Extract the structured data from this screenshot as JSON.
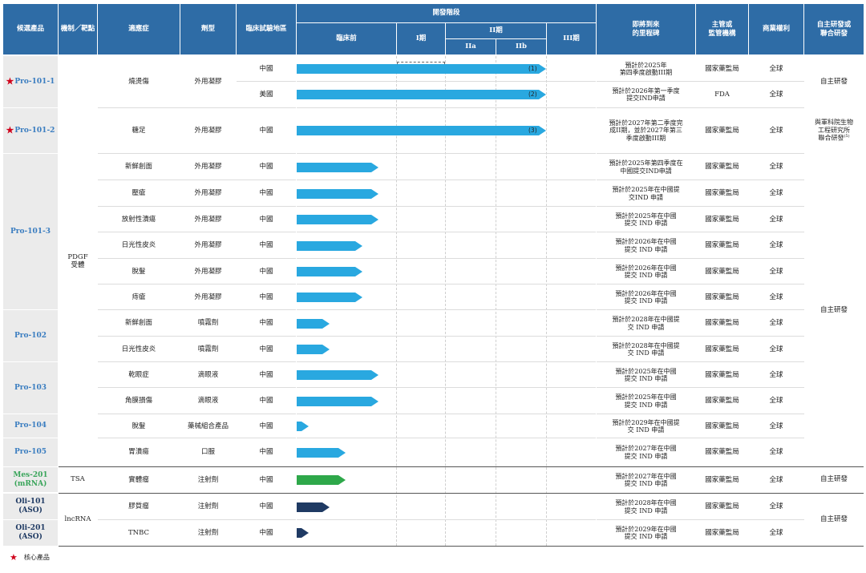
{
  "colors": {
    "header_bg": "#2e6ca6",
    "bar_blue": "#29a8e0",
    "bar_green": "#2ea84a",
    "bar_navy": "#1f3a63",
    "product_blue": "#3a7dc0",
    "product_green": "#3aa55b",
    "star_red": "#d0021b"
  },
  "headers": {
    "candidate": "候選產品",
    "mechanism": "機制／靶點",
    "indication": "適應症",
    "dosage_form": "劑型",
    "region": "臨床試驗地區",
    "stage": "開發階段",
    "preclinical": "臨床前",
    "phase1": "I期",
    "phase2": "II期",
    "phase2a": "IIa",
    "phase2b": "IIb",
    "phase3": "III期",
    "milestone_l1": "即將到來",
    "milestone_l2": "的里程碑",
    "authority_l1": "主管或",
    "authority_l2": "監管機構",
    "rights": "商業權利",
    "devmode_l1": "自主研發或",
    "devmode_l2": "聯合研發"
  },
  "products": [
    {
      "name": "Pro-101-1",
      "core": true
    },
    {
      "name": "Pro-101-2",
      "core": true
    },
    {
      "name": "Pro-101-3",
      "core": false
    },
    {
      "name": "Pro-102",
      "core": false
    },
    {
      "name": "Pro-103",
      "core": false
    },
    {
      "name": "Pro-104",
      "core": false
    },
    {
      "name": "Pro-105",
      "core": false
    },
    {
      "name_l1": "Mes-201",
      "name_l2": "(mRNA)"
    },
    {
      "name_l1": "Oli-101",
      "name_l2": "(ASO)"
    },
    {
      "name_l1": "Oli-201",
      "name_l2": "(ASO)"
    }
  ],
  "mechanisms": {
    "pdgf_l1": "PDGF",
    "pdgf_l2": "受體",
    "tsa": "TSA",
    "lncrna": "lncRNA"
  },
  "rows": [
    {
      "indication": "燒燙傷",
      "form": "外用凝膠",
      "region": "中國",
      "milestone": "預計於2025年\n第四季度啟動III期",
      "authority": "國家藥監局",
      "rights": "全球",
      "bar_pct": 100,
      "bar_label": "(1)",
      "color": "blue"
    },
    {
      "indication": "",
      "form": "",
      "region": "美國",
      "milestone": "預計於2026年第一季度\n提交IND申請",
      "authority": "FDA",
      "rights": "全球",
      "bar_pct": 100,
      "bar_label": "(2)",
      "color": "blue"
    },
    {
      "indication": "糖足",
      "form": "外用凝膠",
      "region": "中國",
      "milestone": "預計於2027年第二季度完\n成II期，並於2027年第三\n季度啟動III期",
      "authority": "國家藥監局",
      "rights": "全球",
      "bar_pct": 100,
      "bar_label": "(3)",
      "color": "blue"
    },
    {
      "indication": "新鮮創面",
      "form": "外用凝膠",
      "region": "中國",
      "milestone": "預計於2025年第四季度在\n中國提交IND申請",
      "authority": "國家藥監局",
      "rights": "全球",
      "bar_pct": 100,
      "bar_label": "",
      "color": "blue"
    },
    {
      "indication": "壓瘡",
      "form": "外用凝膠",
      "region": "中國",
      "milestone": "預計於2025年在中國提\n交IND 申請",
      "authority": "國家藥監局",
      "rights": "全球",
      "bar_pct": 100,
      "bar_label": "",
      "color": "blue"
    },
    {
      "indication": "放射性潰瘍",
      "form": "外用凝膠",
      "region": "中國",
      "milestone": "預計於2025年在中國\n提交 IND 申請",
      "authority": "國家藥監局",
      "rights": "全球",
      "bar_pct": 100,
      "bar_label": "",
      "color": "blue"
    },
    {
      "indication": "日光性皮炎",
      "form": "外用凝膠",
      "region": "中國",
      "milestone": "預計於2026年在中國\n提交 IND 申請",
      "authority": "國家藥監局",
      "rights": "全球",
      "bar_pct": 80,
      "bar_label": "",
      "color": "blue"
    },
    {
      "indication": "脫髮",
      "form": "外用凝膠",
      "region": "中國",
      "milestone": "預計於2026年在中國\n提交 IND 申請",
      "authority": "國家藥監局",
      "rights": "全球",
      "bar_pct": 80,
      "bar_label": "",
      "color": "blue"
    },
    {
      "indication": "痔瘡",
      "form": "外用凝膠",
      "region": "中國",
      "milestone": "預計於2026年在中國\n提交 IND 申請",
      "authority": "國家藥監局",
      "rights": "全球",
      "bar_pct": 80,
      "bar_label": "",
      "color": "blue"
    },
    {
      "indication": "新鮮創面",
      "form": "噴霧劑",
      "region": "中國",
      "milestone": "預計於2028年在中國提\n交 IND 申請",
      "authority": "國家藥監局",
      "rights": "全球",
      "bar_pct": 40,
      "bar_label": "",
      "color": "blue"
    },
    {
      "indication": "日光性皮炎",
      "form": "噴霧劑",
      "region": "中國",
      "milestone": "預計於2028年在中國提\n交 IND 申請",
      "authority": "國家藥監局",
      "rights": "全球",
      "bar_pct": 40,
      "bar_label": "",
      "color": "blue"
    },
    {
      "indication": "乾眼症",
      "form": "滴眼液",
      "region": "中國",
      "milestone": "預計於2025年在中國\n提交 IND 申請",
      "authority": "國家藥監局",
      "rights": "全球",
      "bar_pct": 100,
      "bar_label": "",
      "color": "blue"
    },
    {
      "indication": "角膜損傷",
      "form": "滴眼液",
      "region": "中國",
      "milestone": "預計於2025年在中國\n提交 IND 申請",
      "authority": "國家藥監局",
      "rights": "全球",
      "bar_pct": 100,
      "bar_label": "",
      "color": "blue"
    },
    {
      "indication": "脫髮",
      "form": "藥械組合產品",
      "region": "中國",
      "milestone": "預計於2029年在中國提\n交 IND 申請",
      "authority": "國家藥監局",
      "rights": "全球",
      "bar_pct": 15,
      "bar_label": "",
      "color": "blue"
    },
    {
      "indication": "胃潰瘍",
      "form": "口服",
      "region": "中國",
      "milestone": "預計於2027年在中國\n提交 IND 申請",
      "authority": "國家藥監局",
      "rights": "全球",
      "bar_pct": 60,
      "bar_label": "",
      "color": "blue"
    },
    {
      "indication": "實體瘤",
      "form": "注射劑",
      "region": "中國",
      "milestone": "預計於2027年在中國\n提交 IND 申請",
      "authority": "國家藥監局",
      "rights": "全球",
      "bar_pct": 60,
      "bar_label": "",
      "color": "green"
    },
    {
      "indication": "膠質瘤",
      "form": "注射劑",
      "region": "中國",
      "milestone": "預計於2028年在中國\n提交 IND 申請",
      "authority": "國家藥監局",
      "rights": "全球",
      "bar_pct": 40,
      "bar_label": "",
      "color": "navy"
    },
    {
      "indication": "TNBC",
      "form": "注射劑",
      "region": "中國",
      "milestone": "預計於2029年在中國\n提交 IND 申請",
      "authority": "國家藥監局",
      "rights": "全球",
      "bar_pct": 15,
      "bar_label": "",
      "color": "navy"
    }
  ],
  "devmodes": {
    "pro101_1": "自主研發",
    "pro101_2_l1": "與軍科院生物",
    "pro101_2_l2": "工程研究所",
    "pro101_2_l3": "聯合研發",
    "pro101_2_sup": "(5)",
    "others": "自主研發",
    "mes201": "自主研發",
    "oli": "自主研發"
  },
  "legend": {
    "core_product": "核心產品"
  }
}
